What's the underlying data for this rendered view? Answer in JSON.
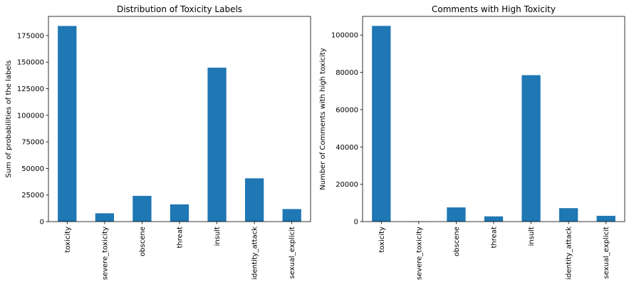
{
  "chart_data": [
    {
      "type": "bar",
      "title": "Distribution of Toxicity Labels",
      "xlabel": "",
      "ylabel": "Sum of probabilities of the labels",
      "categories": [
        "toxicity",
        "severe_toxicity",
        "obscene",
        "threat",
        "insult",
        "identity_attack",
        "sexual_explicit"
      ],
      "values": [
        184000,
        7800,
        24200,
        16200,
        144800,
        40700,
        11800
      ],
      "ylim": [
        0,
        193000
      ],
      "yticks": [
        0,
        25000,
        50000,
        75000,
        100000,
        125000,
        150000,
        175000
      ],
      "ytick_labels": [
        "0",
        "25000",
        "50000",
        "75000",
        "100000",
        "125000",
        "150000",
        "175000"
      ],
      "color": "#1f77b4",
      "grid": false
    },
    {
      "type": "bar",
      "title": "Comments with High Toxicity",
      "xlabel": "",
      "ylabel": "Number of Comments with high toxicity",
      "categories": [
        "toxicity",
        "severe_toxicity",
        "obscene",
        "threat",
        "insult",
        "identity_attack",
        "sexual_explicit"
      ],
      "values": [
        104900,
        40,
        7600,
        2800,
        78500,
        7200,
        3100
      ],
      "ylim": [
        0,
        110000
      ],
      "yticks": [
        0,
        20000,
        40000,
        60000,
        80000,
        100000
      ],
      "ytick_labels": [
        "0",
        "20000",
        "40000",
        "60000",
        "80000",
        "100000"
      ],
      "color": "#1f77b4",
      "grid": false
    }
  ]
}
